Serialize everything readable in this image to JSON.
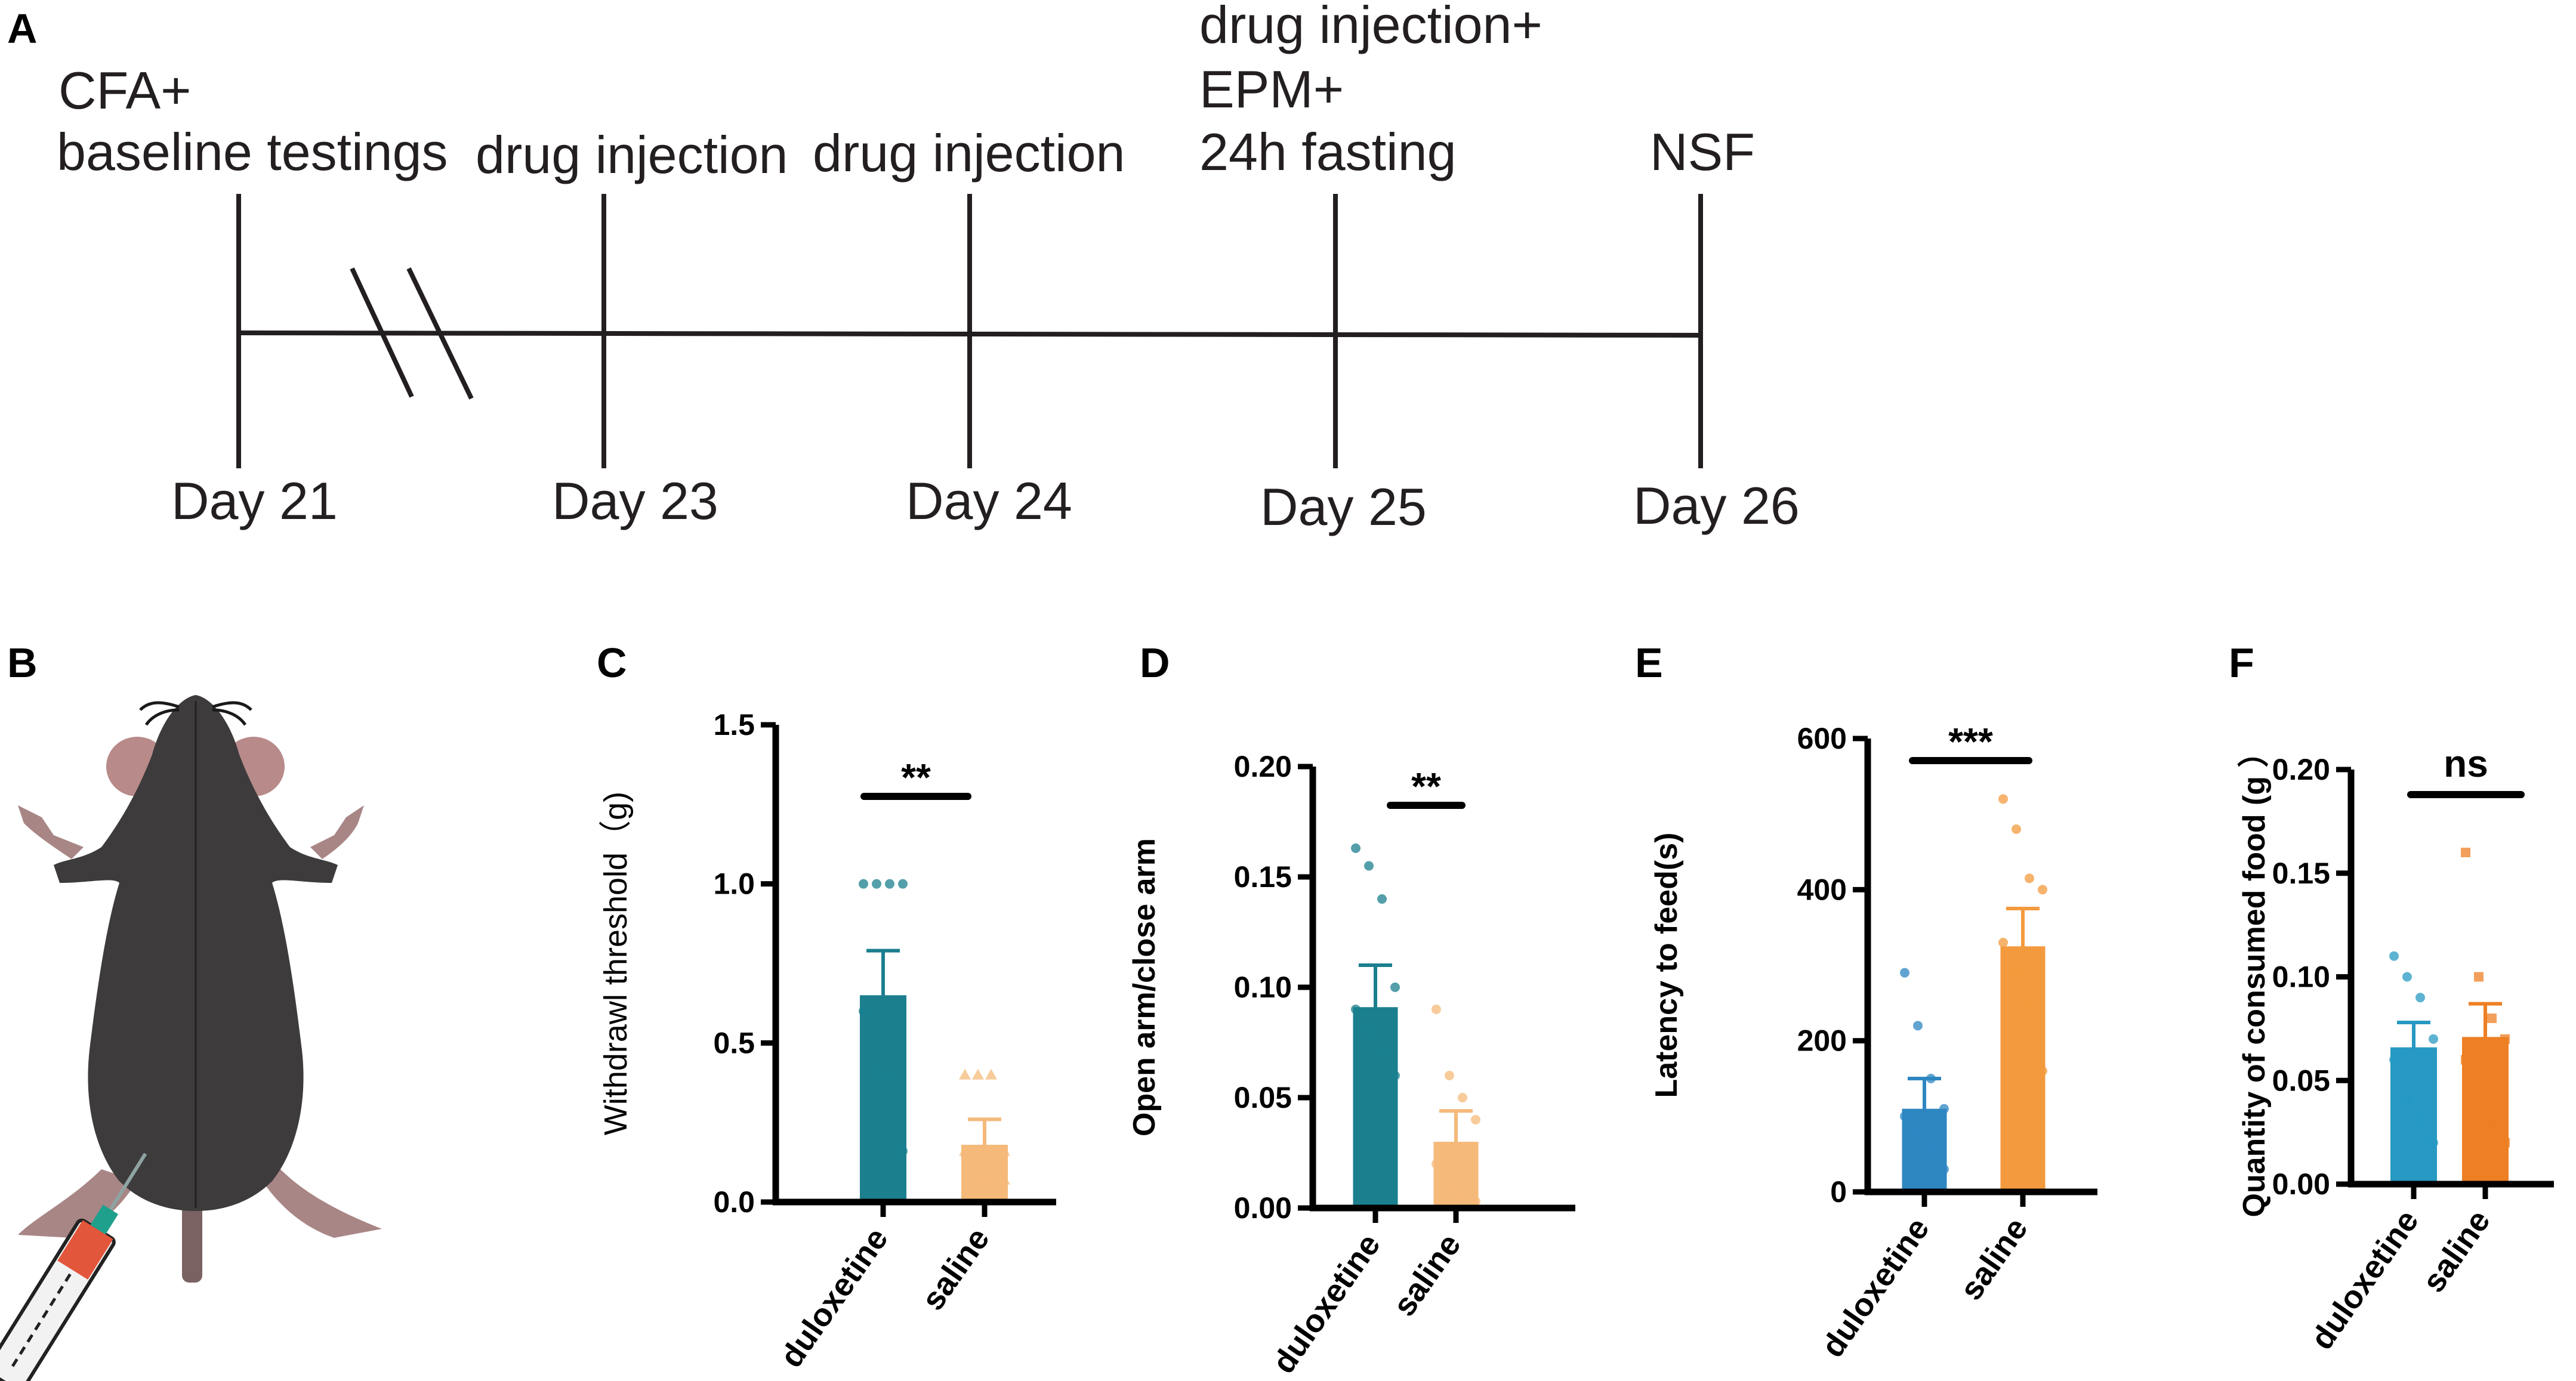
{
  "panels": {
    "A": "A",
    "B": "B",
    "C": "C",
    "D": "D",
    "E": "E",
    "F": "F"
  },
  "timeline": {
    "events": [
      {
        "top": [
          "CFA+",
          "baseline testings"
        ],
        "day": "Day 21"
      },
      {
        "top": [
          "drug injection"
        ],
        "day": "Day 23"
      },
      {
        "top": [
          "drug injection"
        ],
        "day": "Day 24"
      },
      {
        "top": [
          "drug injection+",
          "EPM+",
          "24h fasting"
        ],
        "day": "Day 25"
      },
      {
        "top": [
          "NSF"
        ],
        "day": "Day 26"
      }
    ],
    "line_color": "#231f20"
  },
  "mouse_illustration": {
    "colors": {
      "body": "#3d3b3c",
      "ear": "#b88a8a",
      "syringe": "#e2563b",
      "needle": "#1fa08c"
    }
  },
  "chart_data": [
    {
      "id": "C",
      "type": "bar",
      "ylabel": "Withdrawl threshold（g)",
      "ylim": [
        0,
        1.5
      ],
      "yticks": [
        "0.0",
        "0.5",
        "1.0",
        "1.5"
      ],
      "ytick_values": [
        0,
        0.5,
        1.0,
        1.5
      ],
      "categories": [
        "duloxetine",
        "saline"
      ],
      "series": [
        {
          "name": "duloxetine",
          "mean": 0.65,
          "sem": 0.14,
          "color": "#1b7f8e",
          "points": [
            1.0,
            1.0,
            1.0,
            1.0,
            0.6,
            0.4,
            0.4,
            0.16
          ],
          "marker": "circle"
        },
        {
          "name": "saline",
          "mean": 0.18,
          "sem": 0.08,
          "color": "#f5b97a",
          "points": [
            0.4,
            0.4,
            0.4,
            0.16,
            0.16,
            0.07,
            0.07,
            0.07
          ],
          "marker": "triangle"
        }
      ],
      "significance": "**"
    },
    {
      "id": "D",
      "type": "bar",
      "ylabel": "Open arm/close arm",
      "ylim": [
        0,
        0.2
      ],
      "yticks": [
        "0.00",
        "0.05",
        "0.10",
        "0.15",
        "0.20"
      ],
      "ytick_values": [
        0,
        0.05,
        0.1,
        0.15,
        0.2
      ],
      "categories": [
        "duloxetine",
        "saline"
      ],
      "series": [
        {
          "name": "duloxetine",
          "mean": 0.091,
          "sem": 0.019,
          "color": "#1b7f8e",
          "points": [
            0.163,
            0.155,
            0.14,
            0.1,
            0.09,
            0.08,
            0.07,
            0.06
          ],
          "marker": "circle"
        },
        {
          "name": "saline",
          "mean": 0.03,
          "sem": 0.014,
          "color": "#f5b97a",
          "points": [
            0.09,
            0.06,
            0.05,
            0.04,
            0.02,
            0.01,
            0.005,
            0.003
          ],
          "marker": "circle"
        }
      ],
      "significance": "**"
    },
    {
      "id": "E",
      "type": "bar",
      "ylabel": "Latency to feed(s)",
      "ylim": [
        0,
        600
      ],
      "yticks": [
        "0",
        "200",
        "400",
        "600"
      ],
      "ytick_values": [
        0,
        200,
        400,
        600
      ],
      "categories": [
        "duloxetine",
        "saline"
      ],
      "series": [
        {
          "name": "duloxetine",
          "mean": 110,
          "sem": 40,
          "color": "#2e86c1",
          "points": [
            290,
            220,
            150,
            110,
            100,
            75,
            55,
            30
          ],
          "marker": "circle"
        },
        {
          "name": "saline",
          "mean": 325,
          "sem": 50,
          "color": "#f39a3e",
          "points": [
            520,
            480,
            415,
            400,
            330,
            290,
            250,
            160
          ],
          "marker": "circle"
        }
      ],
      "significance": "***"
    },
    {
      "id": "F",
      "type": "bar",
      "ylabel": "Quantity of consumed food (g  ）",
      "ylim": [
        0,
        0.2
      ],
      "yticks": [
        "0.00",
        "0.05",
        "0.10",
        "0.15",
        "0.20"
      ],
      "ytick_values": [
        0,
        0.05,
        0.1,
        0.15,
        0.2
      ],
      "categories": [
        "duloxetine",
        "saline"
      ],
      "series": [
        {
          "name": "duloxetine",
          "mean": 0.066,
          "sem": 0.012,
          "color": "#2799c2",
          "points": [
            0.11,
            0.1,
            0.09,
            0.07,
            0.06,
            0.04,
            0.03,
            0.02
          ],
          "marker": "circle"
        },
        {
          "name": "saline",
          "mean": 0.071,
          "sem": 0.016,
          "color": "#ee7f24",
          "points": [
            0.16,
            0.1,
            0.08,
            0.07,
            0.06,
            0.04,
            0.03,
            0.02
          ],
          "marker": "square"
        }
      ],
      "significance": "ns"
    }
  ]
}
